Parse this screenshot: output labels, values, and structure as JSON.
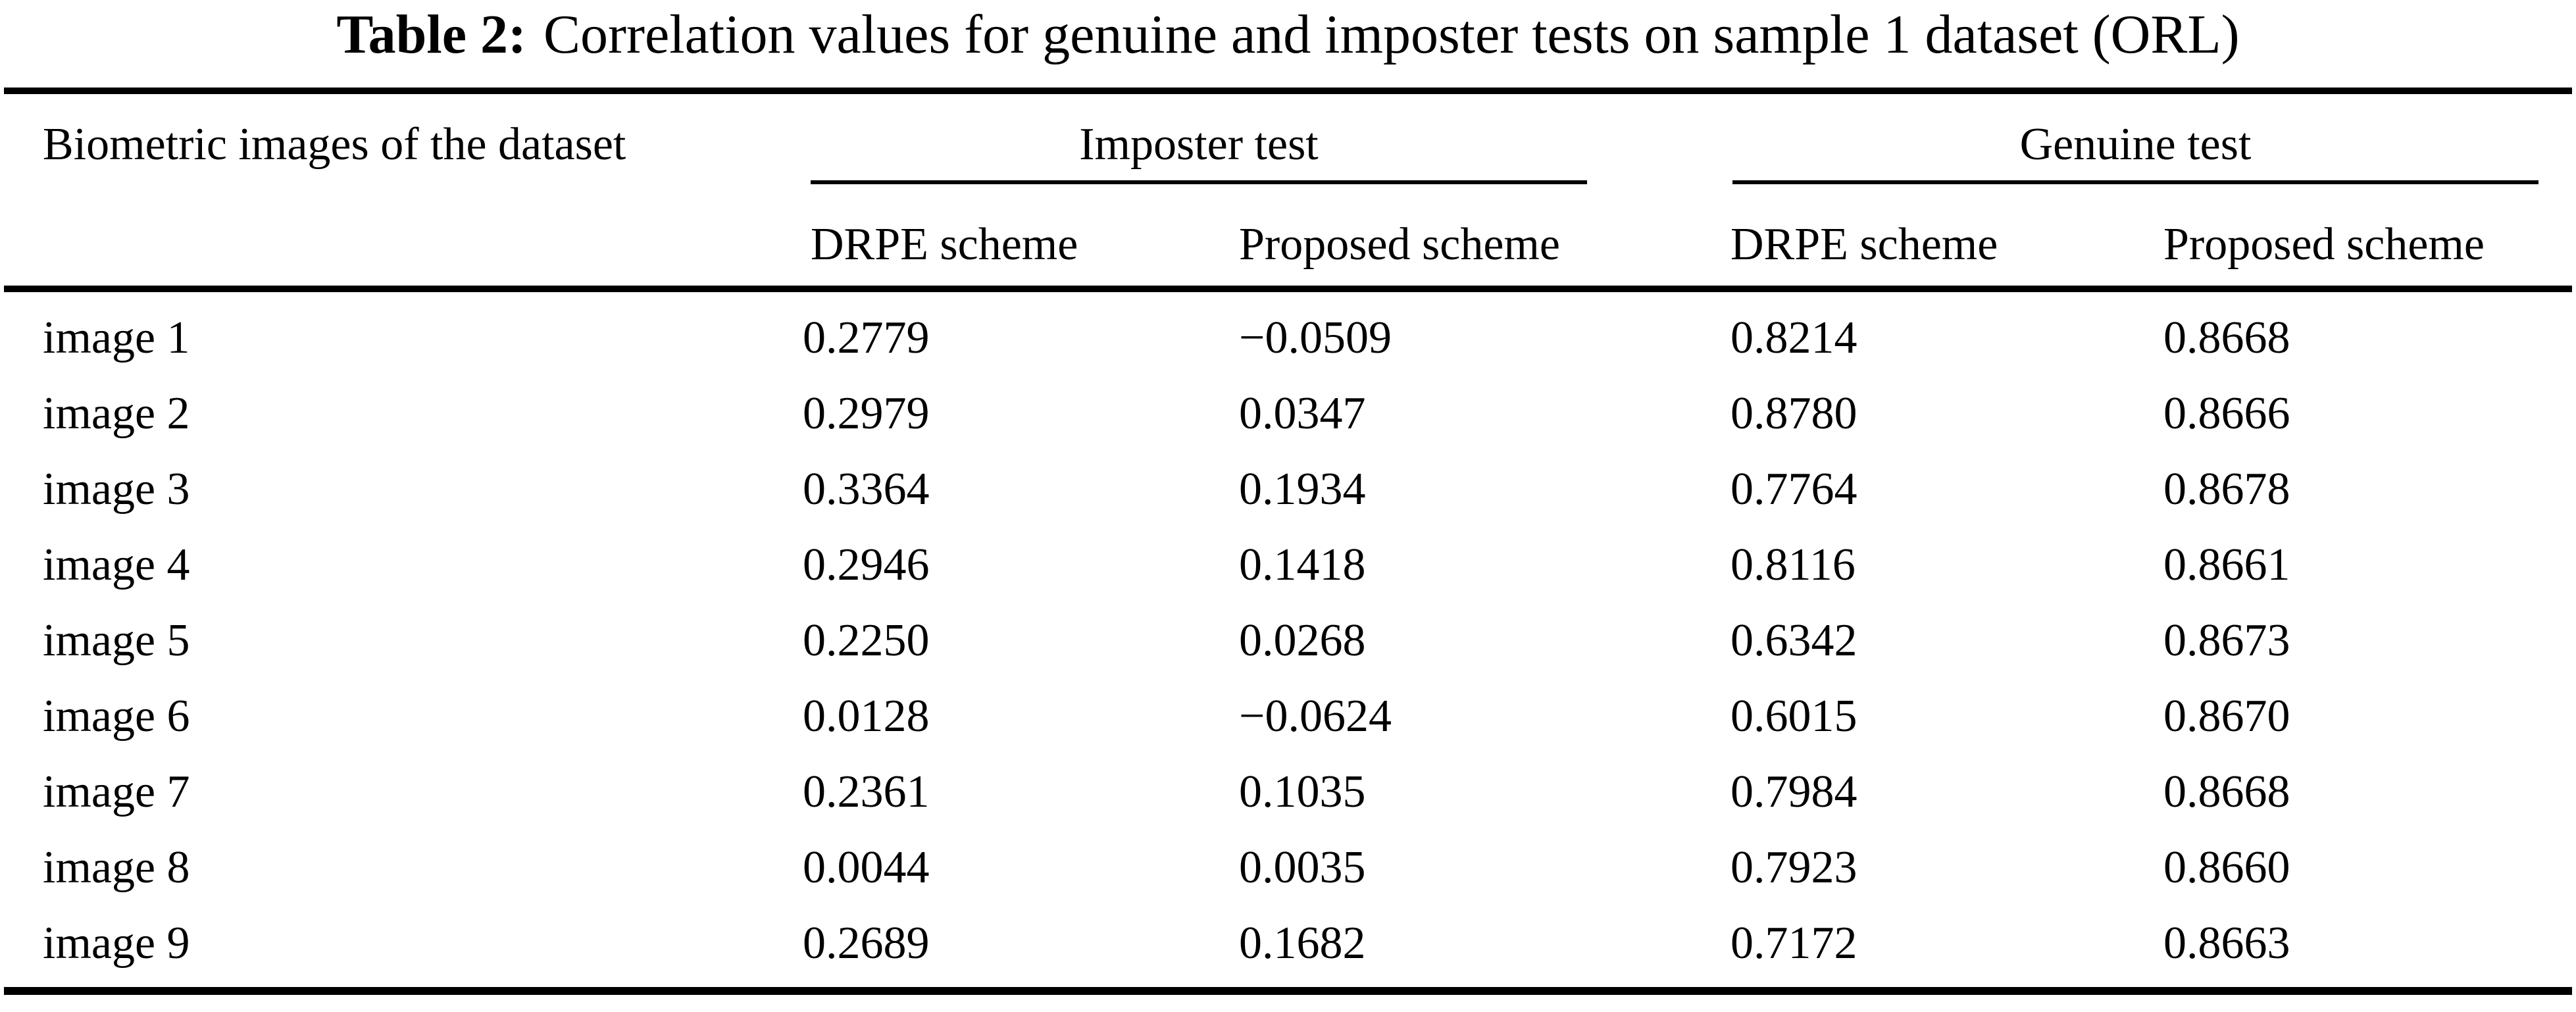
{
  "title": {
    "label": "Table 2:",
    "text": "Correlation values for genuine and imposter tests on sample 1 dataset (ORL)"
  },
  "table": {
    "col1_header": "Biometric images of the dataset",
    "groups": [
      {
        "label": "Imposter test",
        "sub": [
          "DRPE scheme",
          "Proposed scheme"
        ]
      },
      {
        "label": "Genuine test",
        "sub": [
          "DRPE scheme",
          "Proposed scheme"
        ]
      }
    ],
    "rows": [
      {
        "label": "image 1",
        "values": [
          "0.2779",
          "−0.0509",
          "0.8214",
          "0.8668"
        ]
      },
      {
        "label": "image 2",
        "values": [
          "0.2979",
          "0.0347",
          "0.8780",
          "0.8666"
        ]
      },
      {
        "label": "image 3",
        "values": [
          "0.3364",
          "0.1934",
          "0.7764",
          "0.8678"
        ]
      },
      {
        "label": "image 4",
        "values": [
          "0.2946",
          "0.1418",
          "0.8116",
          "0.8661"
        ]
      },
      {
        "label": "image 5",
        "values": [
          "0.2250",
          "0.0268",
          "0.6342",
          "0.8673"
        ]
      },
      {
        "label": "image 6",
        "values": [
          "0.0128",
          "−0.0624",
          "0.6015",
          "0.8670"
        ]
      },
      {
        "label": "image 7",
        "values": [
          "0.2361",
          "0.1035",
          "0.7984",
          "0.8668"
        ]
      },
      {
        "label": "image 8",
        "values": [
          "0.0044",
          "0.0035",
          "0.7923",
          "0.8660"
        ]
      },
      {
        "label": "image 9",
        "values": [
          "0.2689",
          "0.1682",
          "0.7172",
          "0.8663"
        ]
      }
    ]
  }
}
